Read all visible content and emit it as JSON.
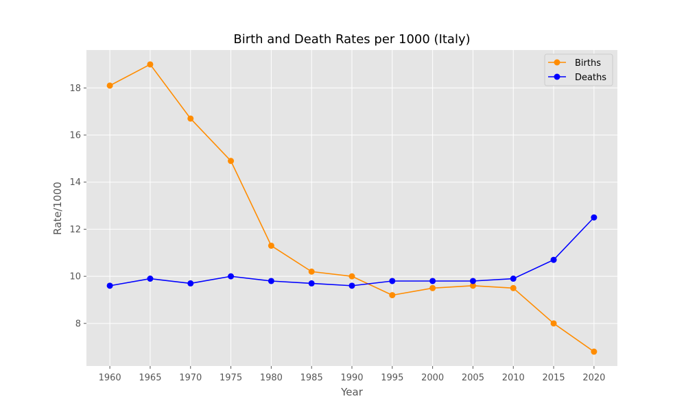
{
  "chart_data": {
    "type": "line",
    "title": "Birth and Death Rates per 1000 (Italy)",
    "xlabel": "Year",
    "ylabel": "Rate/1000",
    "x": [
      1960,
      1965,
      1970,
      1975,
      1980,
      1985,
      1990,
      1995,
      2000,
      2005,
      2010,
      2015,
      2020
    ],
    "x_tick_labels": [
      "1960",
      "1965",
      "1970",
      "1975",
      "1980",
      "1985",
      "1990",
      "1995",
      "2000",
      "2005",
      "2010",
      "2015",
      "2020"
    ],
    "y_ticks": [
      8,
      10,
      12,
      14,
      16,
      18
    ],
    "y_tick_labels": [
      "8",
      "10",
      "12",
      "14",
      "16",
      "18"
    ],
    "xlim": [
      1957.1,
      2022.9
    ],
    "ylim": [
      6.19,
      19.61
    ],
    "grid": true,
    "legend_position": "top-right",
    "series": [
      {
        "name": "Births",
        "color": "#ff8c00",
        "marker": "circle",
        "values": [
          18.1,
          19.0,
          16.7,
          14.9,
          11.3,
          10.2,
          10.0,
          9.2,
          9.5,
          9.6,
          9.5,
          8.0,
          6.8
        ]
      },
      {
        "name": "Deaths",
        "color": "#0000ff",
        "marker": "circle",
        "values": [
          9.6,
          9.9,
          9.7,
          10.0,
          9.8,
          9.7,
          9.6,
          9.8,
          9.8,
          9.8,
          9.9,
          10.7,
          12.5
        ]
      }
    ]
  }
}
